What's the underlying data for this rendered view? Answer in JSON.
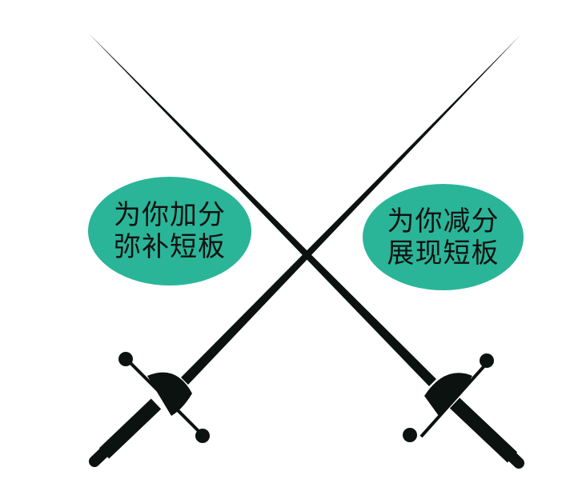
{
  "colors": {
    "background": "#ffffff",
    "sword": "#0c1210",
    "bubble": "#2ab598",
    "bubble_text": "#111111"
  },
  "icons": [
    "crossed-rapiers-icon"
  ],
  "bubbles": {
    "left": {
      "line1": "为你加分",
      "line2": "弥补短板"
    },
    "right": {
      "line1": "为你减分",
      "line2": "展现短板"
    }
  }
}
